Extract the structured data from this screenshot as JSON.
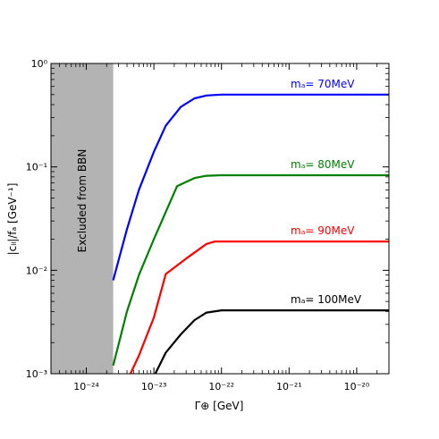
{
  "chart_data": {
    "type": "line",
    "xscale": "log",
    "yscale": "log",
    "xlim": [
      3e-25,
      3e-20
    ],
    "ylim": [
      0.001,
      1
    ],
    "xlabel": "Γ⊕ [GeV]",
    "ylabel": "|cₗₗ|/fₐ [GeV⁻¹]",
    "x_ticks": [
      {
        "value": 1e-24,
        "label": "10⁻²⁴"
      },
      {
        "value": 1e-23,
        "label": "10⁻²³"
      },
      {
        "value": 1e-22,
        "label": "10⁻²²"
      },
      {
        "value": 1e-21,
        "label": "10⁻²¹"
      },
      {
        "value": 1e-20,
        "label": "10⁻²⁰"
      }
    ],
    "y_ticks": [
      {
        "value": 0.001,
        "label": "10⁻³"
      },
      {
        "value": 0.01,
        "label": "10⁻²"
      },
      {
        "value": 0.1,
        "label": "10⁻¹"
      },
      {
        "value": 1,
        "label": "10⁰"
      }
    ],
    "excluded_region": {
      "x_range": [
        3e-25,
        2.5e-24
      ],
      "label": "Excluded from BBN",
      "color": "#b3b3b3"
    },
    "series": [
      {
        "name": "mₐ= 70MeV",
        "color": "#0000ff",
        "x": [
          2.5e-24,
          4e-24,
          6e-24,
          1e-23,
          1.5e-23,
          2.5e-23,
          4e-23,
          6e-23,
          1e-22,
          3e-22,
          1e-21,
          1e-20,
          3e-20
        ],
        "y": [
          0.008,
          0.025,
          0.06,
          0.14,
          0.25,
          0.38,
          0.46,
          0.49,
          0.5,
          0.5,
          0.5,
          0.5,
          0.5
        ]
      },
      {
        "name": "mₐ= 80MeV",
        "color": "#008000",
        "x": [
          2.5e-24,
          4e-24,
          6e-24,
          1e-23,
          2.2e-23,
          4e-23,
          6e-23,
          1e-22,
          3e-22,
          1e-21,
          1e-20,
          3e-20
        ],
        "y": [
          0.0012,
          0.004,
          0.009,
          0.02,
          0.065,
          0.078,
          0.082,
          0.083,
          0.083,
          0.083,
          0.083,
          0.083
        ]
      },
      {
        "name": "mₐ= 90MeV",
        "color": "#ff0000",
        "x": [
          4.5e-24,
          6e-24,
          1e-23,
          1.5e-23,
          3e-23,
          6e-23,
          8e-23,
          3e-22,
          1e-21,
          1e-20,
          3e-20
        ],
        "y": [
          0.001,
          0.0015,
          0.0035,
          0.0092,
          0.013,
          0.018,
          0.019,
          0.019,
          0.019,
          0.019,
          0.019
        ]
      },
      {
        "name": "mₐ= 100MeV",
        "color": "#000000",
        "x": [
          1.05e-23,
          1.5e-23,
          2.5e-23,
          4e-23,
          6e-23,
          1e-22,
          3e-22,
          1e-21,
          1e-20,
          3e-20
        ],
        "y": [
          0.001,
          0.0016,
          0.0024,
          0.0033,
          0.0039,
          0.0041,
          0.0041,
          0.0041,
          0.0041,
          0.0041
        ]
      }
    ],
    "legend": "inline-labels"
  }
}
